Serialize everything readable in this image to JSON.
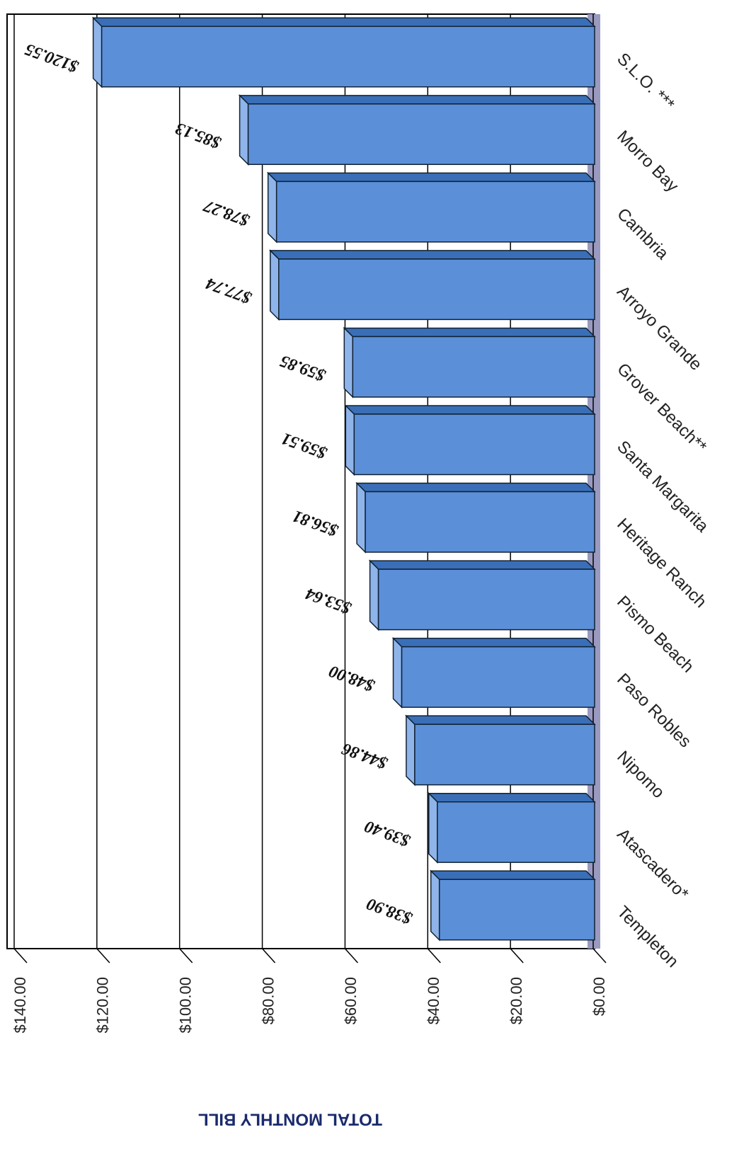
{
  "chart_data": {
    "type": "bar",
    "ylabel": "TOTAL MONTHLY BILL",
    "categories": [
      "Templeton",
      "Atascadero*",
      "Nipomo",
      "Paso Robles",
      "Pismo Beach",
      "Heritage Ranch",
      "Santa Margarita",
      "Grover Beach**",
      "Arroyo Grande",
      "Cambria",
      "Morro Bay",
      "S.L.O. ***"
    ],
    "values": [
      38.9,
      39.4,
      44.86,
      48.0,
      53.64,
      56.81,
      59.51,
      59.85,
      77.74,
      78.27,
      85.13,
      120.55
    ],
    "value_labels": [
      "$38.90",
      "$39.40",
      "$44.86",
      "$48.00",
      "$53.64",
      "$56.81",
      "$59.51",
      "$59.85",
      "$77.74",
      "$78.27",
      "$85.13",
      "$120.55"
    ],
    "color": "#5b8fd8",
    "ylim": [
      0,
      140
    ],
    "yticks": [
      {
        "value": 0,
        "label": "$0.00"
      },
      {
        "value": 20,
        "label": "$20.00"
      },
      {
        "value": 40,
        "label": "$40.00"
      },
      {
        "value": 60,
        "label": "$60.00"
      },
      {
        "value": 80,
        "label": "$80.00"
      },
      {
        "value": 100,
        "label": "$100.00"
      },
      {
        "value": 120,
        "label": "$120.00"
      },
      {
        "value": 140,
        "label": "$140.00"
      }
    ],
    "grid": true
  }
}
